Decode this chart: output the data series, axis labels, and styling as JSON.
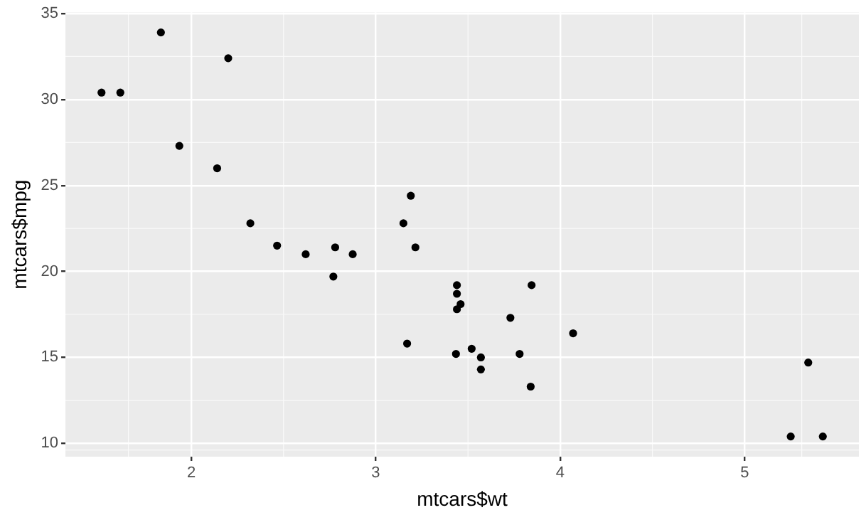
{
  "chart_data": {
    "type": "scatter",
    "xlabel": "mtcars$wt",
    "ylabel": "mtcars$mpg",
    "x": [
      2.62,
      2.875,
      2.32,
      3.215,
      3.44,
      3.46,
      3.57,
      3.19,
      3.15,
      3.44,
      3.44,
      4.07,
      3.73,
      3.78,
      5.25,
      5.424,
      5.345,
      2.2,
      1.615,
      1.835,
      2.465,
      3.52,
      3.435,
      3.84,
      3.845,
      1.935,
      2.14,
      1.513,
      3.17,
      2.77,
      3.57,
      2.78
    ],
    "values": [
      21.0,
      21.0,
      22.8,
      21.4,
      18.7,
      18.1,
      14.3,
      24.4,
      22.8,
      19.2,
      17.8,
      16.4,
      17.3,
      15.2,
      10.4,
      10.4,
      14.7,
      32.4,
      30.4,
      33.9,
      21.5,
      15.5,
      15.2,
      13.3,
      19.2,
      27.3,
      26.0,
      30.4,
      15.8,
      19.7,
      15.0,
      21.4
    ],
    "color": "#000000",
    "marker": "circle",
    "xlim": [
      1.3175,
      5.6196
    ],
    "ylim": [
      9.225,
      35.075
    ],
    "xticks": [
      2,
      3,
      4,
      5
    ],
    "yticks": [
      10,
      15,
      20,
      25,
      30,
      35
    ],
    "grid": true
  }
}
